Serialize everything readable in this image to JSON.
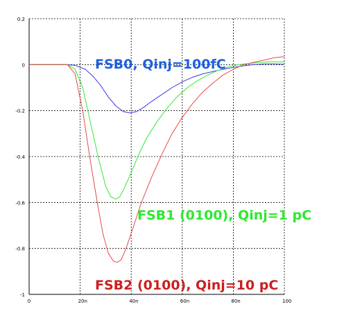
{
  "chart_data": {
    "type": "line",
    "xlim": [
      0,
      100
    ],
    "ylim": [
      -1,
      0.2
    ],
    "x_ticks": [
      "0",
      "20n",
      "40n",
      "60n",
      "80n",
      "100"
    ],
    "y_ticks": [
      "0.2",
      "0",
      "-0.2",
      "-0.4",
      "-0.6",
      "-0.8",
      "-1"
    ],
    "grid": true,
    "annotations": [
      {
        "text": "FSB0, Qinj=100fC",
        "color": "#1e5fe0"
      },
      {
        "text": "FSB1 (0100), Qinj=1 pC",
        "color": "#2ee82e"
      },
      {
        "text": "FSB2 (0100), Qinj=10 pC",
        "color": "#cc1f1f"
      }
    ],
    "series": [
      {
        "color": "#3a3ae0",
        "x": [
          0,
          14,
          18,
          22,
          25,
          28,
          31,
          34,
          37,
          39.5,
          42,
          45,
          48,
          52,
          56,
          60,
          64,
          68,
          72,
          76,
          80,
          84,
          88,
          92,
          96,
          100
        ],
        "y": [
          0,
          0,
          -0.003,
          -0.02,
          -0.05,
          -0.09,
          -0.14,
          -0.18,
          -0.205,
          -0.21,
          -0.205,
          -0.185,
          -0.16,
          -0.13,
          -0.1,
          -0.075,
          -0.055,
          -0.04,
          -0.03,
          -0.02,
          -0.012,
          -0.005,
          0,
          0.003,
          0.003,
          0.002
        ]
      },
      {
        "color": "#33e833",
        "x": [
          0,
          15,
          18,
          21,
          24,
          27,
          30,
          32,
          34,
          35.5,
          37,
          40,
          43,
          46,
          50,
          54,
          58,
          62,
          66,
          70,
          74,
          78,
          82,
          86,
          90,
          94,
          100
        ],
        "y": [
          0,
          0,
          -0.02,
          -0.1,
          -0.25,
          -0.4,
          -0.53,
          -0.575,
          -0.585,
          -0.575,
          -0.545,
          -0.47,
          -0.39,
          -0.32,
          -0.25,
          -0.19,
          -0.14,
          -0.1,
          -0.07,
          -0.045,
          -0.025,
          -0.01,
          0,
          0.005,
          0.01,
          0.012,
          0.012
        ]
      },
      {
        "color": "#e84848",
        "x": [
          0,
          15,
          18,
          21,
          24,
          27,
          29,
          31,
          33,
          34.5,
          36,
          38,
          41,
          44,
          48,
          52,
          56,
          60,
          64,
          68,
          72,
          76,
          80,
          84,
          88,
          92,
          96,
          100
        ],
        "y": [
          0,
          0,
          -0.04,
          -0.2,
          -0.42,
          -0.62,
          -0.74,
          -0.82,
          -0.855,
          -0.86,
          -0.85,
          -0.8,
          -0.7,
          -0.6,
          -0.49,
          -0.39,
          -0.3,
          -0.23,
          -0.17,
          -0.12,
          -0.08,
          -0.045,
          -0.02,
          0,
          0.01,
          0.02,
          0.03,
          0.035
        ]
      }
    ]
  }
}
